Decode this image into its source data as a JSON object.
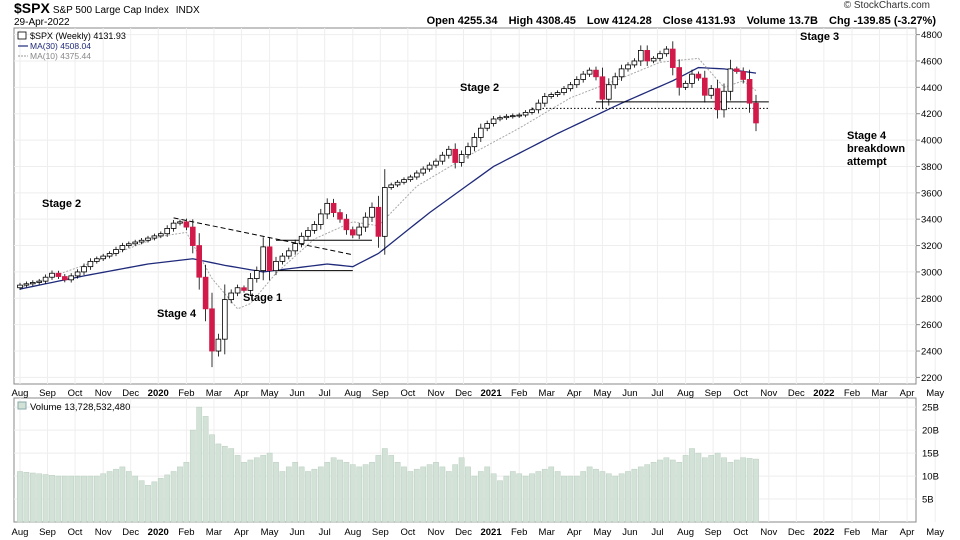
{
  "header": {
    "symbol": "$SPX",
    "name": "S&P 500 Large Cap Index",
    "exchange": "INDX",
    "date": "29-Apr-2022",
    "open": "Open 4255.34",
    "high": "High 4308.45",
    "low": "Low 4124.28",
    "close": "Close 4131.93",
    "volume": "Volume 13.7B",
    "chg": "Chg -139.85 (-3.27%)",
    "brand": "© StockCharts.com"
  },
  "legend": {
    "price": "$SPX (Weekly) 4131.93",
    "ma30": "MA(30) 4508.04",
    "ma10": "MA(10) 4375.44",
    "volume": "Volume 13,728,532,480"
  },
  "annotations": {
    "stage2_left": "Stage 2",
    "stage4_left": "Stage 4",
    "stage1": "Stage 1",
    "stage2_mid": "Stage 2",
    "stage3": "Stage 3",
    "stage4_right_1": "Stage 4",
    "stage4_right_2": "breakdown",
    "stage4_right_3": "attempt"
  },
  "chart_data": {
    "type": "candlestick",
    "frequency": "weekly",
    "ylim": [
      2150,
      4850
    ],
    "y_ticks": [
      2200,
      2400,
      2600,
      2800,
      3000,
      3200,
      3400,
      3600,
      3800,
      4000,
      4200,
      4400,
      4600,
      4800
    ],
    "volume_ylim": [
      0,
      27
    ],
    "volume_ticks": [
      5,
      10,
      15,
      20,
      25
    ],
    "volume_tick_labels": [
      "5B",
      "10B",
      "15B",
      "20B",
      "25B"
    ],
    "x_labels": [
      "Aug",
      "Sep",
      "Oct",
      "Nov",
      "Dec",
      "2020",
      "Feb",
      "Mar",
      "Apr",
      "May",
      "Jun",
      "Jul",
      "Aug",
      "Sep",
      "Oct",
      "Nov",
      "Dec",
      "2021",
      "Feb",
      "Mar",
      "Apr",
      "May",
      "Jun",
      "Jul",
      "Aug",
      "Sep",
      "Oct",
      "Nov",
      "Dec",
      "2022",
      "Feb",
      "Mar",
      "Apr",
      "May"
    ],
    "x_label_bold": [
      "2020",
      "2021",
      "2022"
    ],
    "x_label_weeks": [
      0,
      4.3,
      8.6,
      13,
      17.3,
      21.6,
      26,
      30.3,
      34.6,
      39,
      43.3,
      47.6,
      52,
      56.3,
      60.6,
      65,
      69.3,
      73.6,
      78,
      82.3,
      86.6,
      91,
      95.3,
      99.6,
      104,
      108.3,
      112.6,
      117,
      121.3,
      125.6,
      130,
      134.3,
      138.6,
      143
    ],
    "anchor_closes": [
      [
        0,
        2900
      ],
      [
        3,
        2930
      ],
      [
        5,
        2990
      ],
      [
        7,
        2940
      ],
      [
        9,
        3000
      ],
      [
        11,
        3080
      ],
      [
        14,
        3140
      ],
      [
        16,
        3200
      ],
      [
        19,
        3240
      ],
      [
        22,
        3290
      ],
      [
        24,
        3370
      ],
      [
        25,
        3380
      ],
      [
        26,
        3340
      ],
      [
        27,
        3200
      ],
      [
        28,
        2960
      ],
      [
        29,
        2720
      ],
      [
        30,
        2400
      ],
      [
        31,
        2490
      ],
      [
        32,
        2790
      ],
      [
        33,
        2840
      ],
      [
        34,
        2880
      ],
      [
        35,
        2860
      ],
      [
        36,
        2950
      ],
      [
        37,
        3010
      ],
      [
        38,
        3190
      ],
      [
        39,
        3010
      ],
      [
        40,
        3080
      ],
      [
        42,
        3160
      ],
      [
        44,
        3270
      ],
      [
        46,
        3360
      ],
      [
        48,
        3520
      ],
      [
        49,
        3450
      ],
      [
        50,
        3400
      ],
      [
        51,
        3320
      ],
      [
        52,
        3280
      ],
      [
        53,
        3340
      ],
      [
        55,
        3490
      ],
      [
        56,
        3270
      ],
      [
        57,
        3640
      ],
      [
        59,
        3680
      ],
      [
        61,
        3720
      ],
      [
        63,
        3780
      ],
      [
        65,
        3840
      ],
      [
        67,
        3930
      ],
      [
        68,
        3830
      ],
      [
        70,
        3950
      ],
      [
        72,
        4090
      ],
      [
        74,
        4160
      ],
      [
        76,
        4180
      ],
      [
        78,
        4190
      ],
      [
        80,
        4230
      ],
      [
        82,
        4330
      ],
      [
        84,
        4360
      ],
      [
        86,
        4420
      ],
      [
        88,
        4500
      ],
      [
        89,
        4530
      ],
      [
        90,
        4480
      ],
      [
        91,
        4310
      ],
      [
        92,
        4420
      ],
      [
        94,
        4540
      ],
      [
        96,
        4600
      ],
      [
        97,
        4680
      ],
      [
        98,
        4600
      ],
      [
        99,
        4620
      ],
      [
        101,
        4690
      ],
      [
        102,
        4550
      ],
      [
        103,
        4400
      ],
      [
        104,
        4430
      ],
      [
        105,
        4500
      ],
      [
        106,
        4470
      ],
      [
        107,
        4340
      ],
      [
        108,
        4390
      ],
      [
        109,
        4230
      ],
      [
        110,
        4370
      ],
      [
        111,
        4540
      ],
      [
        112,
        4520
      ],
      [
        113,
        4460
      ],
      [
        114,
        4280
      ],
      [
        115,
        4130
      ]
    ],
    "ma30_anchors": [
      [
        0,
        2870
      ],
      [
        10,
        2970
      ],
      [
        20,
        3060
      ],
      [
        27,
        3100
      ],
      [
        32,
        3050
      ],
      [
        38,
        3000
      ],
      [
        48,
        3060
      ],
      [
        52,
        3040
      ],
      [
        56,
        3140
      ],
      [
        64,
        3450
      ],
      [
        74,
        3800
      ],
      [
        84,
        4050
      ],
      [
        94,
        4280
      ],
      [
        102,
        4450
      ],
      [
        106,
        4550
      ],
      [
        110,
        4540
      ],
      [
        115,
        4508
      ]
    ],
    "ma10_anchors": [
      [
        0,
        2880
      ],
      [
        10,
        3050
      ],
      [
        22,
        3270
      ],
      [
        26,
        3300
      ],
      [
        30,
        2950
      ],
      [
        34,
        2720
      ],
      [
        36,
        2760
      ],
      [
        40,
        2990
      ],
      [
        46,
        3250
      ],
      [
        52,
        3380
      ],
      [
        56,
        3350
      ],
      [
        62,
        3650
      ],
      [
        70,
        3880
      ],
      [
        78,
        4090
      ],
      [
        86,
        4320
      ],
      [
        94,
        4470
      ],
      [
        100,
        4590
      ],
      [
        106,
        4620
      ],
      [
        110,
        4400
      ],
      [
        113,
        4450
      ],
      [
        115,
        4375
      ]
    ],
    "trendlines": [
      {
        "style": "dashed",
        "from": [
          24,
          3410
        ],
        "to": [
          52,
          3130
        ]
      },
      {
        "style": "solid",
        "from": [
          40,
          3240
        ],
        "to": [
          55,
          3240
        ]
      },
      {
        "style": "solid",
        "from": [
          40,
          3010
        ],
        "to": [
          52,
          3010
        ]
      },
      {
        "style": "solid",
        "from": [
          90,
          4290
        ],
        "to": [
          117,
          4290
        ]
      },
      {
        "style": "dotted",
        "from": [
          80,
          4240
        ],
        "to": [
          117,
          4240
        ]
      }
    ],
    "volume_anchors": [
      [
        0,
        11
      ],
      [
        6,
        10
      ],
      [
        12,
        10
      ],
      [
        16,
        12
      ],
      [
        20,
        8
      ],
      [
        24,
        11
      ],
      [
        26,
        13
      ],
      [
        27,
        20
      ],
      [
        28,
        25
      ],
      [
        29,
        23
      ],
      [
        30,
        19
      ],
      [
        31,
        17
      ],
      [
        33,
        16
      ],
      [
        35,
        13
      ],
      [
        37,
        14
      ],
      [
        39,
        15
      ],
      [
        41,
        11
      ],
      [
        43,
        13
      ],
      [
        45,
        11
      ],
      [
        47,
        12
      ],
      [
        49,
        14
      ],
      [
        51,
        13
      ],
      [
        53,
        12
      ],
      [
        55,
        13
      ],
      [
        57,
        16
      ],
      [
        59,
        13
      ],
      [
        61,
        11
      ],
      [
        63,
        12
      ],
      [
        65,
        13
      ],
      [
        67,
        11
      ],
      [
        69,
        14
      ],
      [
        71,
        10
      ],
      [
        73,
        12
      ],
      [
        75,
        9
      ],
      [
        77,
        11
      ],
      [
        79,
        10
      ],
      [
        81,
        11
      ],
      [
        83,
        12
      ],
      [
        85,
        10
      ],
      [
        87,
        10
      ],
      [
        89,
        12
      ],
      [
        91,
        11
      ],
      [
        93,
        10
      ],
      [
        95,
        11
      ],
      [
        97,
        12
      ],
      [
        99,
        13
      ],
      [
        101,
        14
      ],
      [
        103,
        13
      ],
      [
        105,
        16
      ],
      [
        107,
        14
      ],
      [
        109,
        15
      ],
      [
        111,
        13
      ],
      [
        113,
        14
      ],
      [
        115,
        13.7
      ]
    ]
  }
}
